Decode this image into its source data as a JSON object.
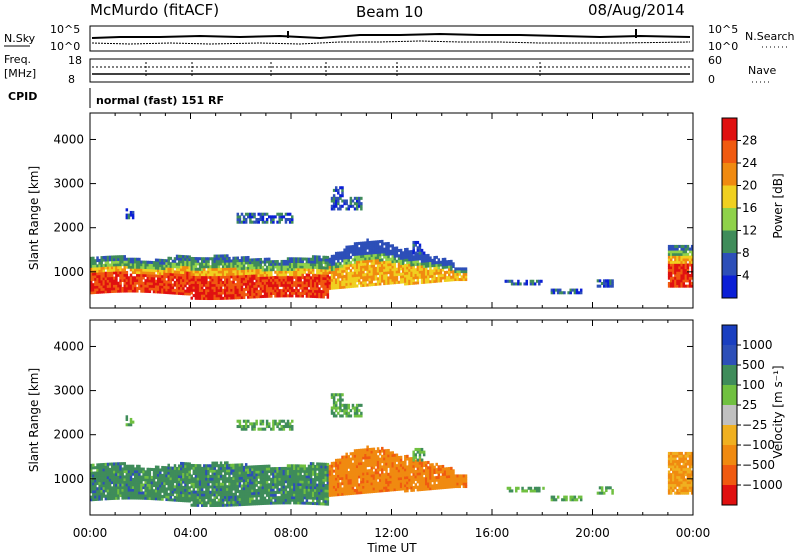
{
  "header": {
    "radar": "McMurdo (fitACF)",
    "beam": "Beam 10",
    "date": "08/Aug/2014"
  },
  "noise_panel": {
    "left_label": "N.Sky",
    "right_label": "N.Search",
    "left_ticks": [
      "10^5",
      "10^0"
    ],
    "right_ticks": [
      "10^5",
      "10^0"
    ]
  },
  "freq_panel": {
    "left_label_1": "Freq.",
    "left_label_2": "[MHz]",
    "right_label": "Nave",
    "left_ticks": [
      "18",
      "8"
    ],
    "right_ticks": [
      "60",
      "0"
    ]
  },
  "cpid": {
    "label": "CPID",
    "text": "normal (fast) 151 RF"
  },
  "colors": {
    "power": [
      "#0b1fd6",
      "#2d4fb8",
      "#3f8c5a",
      "#8fd24a",
      "#f0d020",
      "#f08a10",
      "#f05a10",
      "#e01010"
    ],
    "velocity": [
      "#e01010",
      "#f05a10",
      "#f08a10",
      "#f0b020",
      "#c0c0c0",
      "#70c040",
      "#3f8c5a",
      "#2d4fb8",
      "#1a3fc0"
    ]
  },
  "chart_data": [
    {
      "type": "heatmap",
      "panel": "power",
      "ylabel": "Slant Range [km]",
      "xlabel": "",
      "yticks": [
        1000,
        2000,
        3000,
        4000
      ],
      "ylim": [
        180,
        4600
      ],
      "xticks": [
        "00:00",
        "04:00",
        "08:00",
        "12:00",
        "16:00",
        "20:00",
        "00:00"
      ],
      "xlim_hours": [
        0,
        24
      ],
      "colorbar_label": "Power [dB]",
      "colorbar_ticks": [
        "4",
        "8",
        "12",
        "16",
        "20",
        "24",
        "28"
      ],
      "colorbar_range": [
        0,
        30
      ]
    },
    {
      "type": "heatmap",
      "panel": "velocity",
      "ylabel": "Slant Range [km]",
      "xlabel": "Time UT",
      "yticks": [
        1000,
        2000,
        3000,
        4000
      ],
      "ylim": [
        180,
        4600
      ],
      "xticks": [
        "00:00",
        "04:00",
        "08:00",
        "12:00",
        "16:00",
        "20:00",
        "00:00"
      ],
      "xlim_hours": [
        0,
        24
      ],
      "colorbar_label": "Velocity [m s⁻¹]",
      "colorbar_ticks": [
        "1000",
        "500",
        "100",
        "25",
        "−25",
        "−100",
        "−500",
        "−1000"
      ]
    }
  ]
}
